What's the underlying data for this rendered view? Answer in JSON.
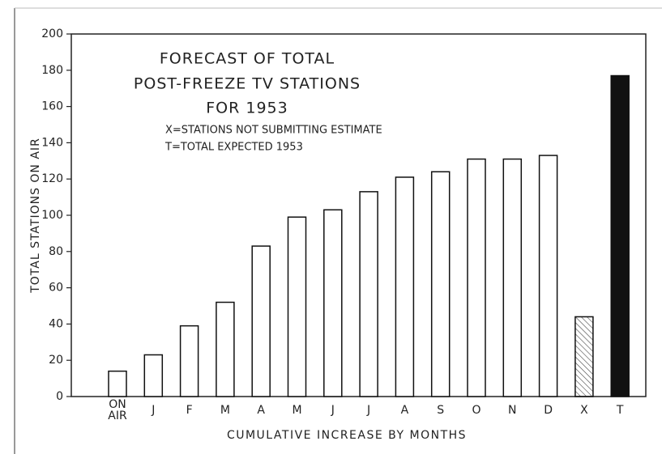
{
  "chart_data": {
    "type": "bar",
    "title": [
      "FORECAST OF TOTAL",
      "POST-FREEZE TV STATIONS",
      "FOR 1953"
    ],
    "annotations": [
      "X=STATIONS NOT SUBMITTING ESTIMATE",
      "T=TOTAL EXPECTED 1953"
    ],
    "ylabel": "TOTAL STATIONS ON AIR",
    "xlabel": "CUMULATIVE INCREASE BY MONTHS",
    "categories": [
      "ON AIR",
      "J",
      "F",
      "M",
      "A",
      "M",
      "J",
      "J",
      "A",
      "S",
      "O",
      "N",
      "D",
      "X",
      "T"
    ],
    "values": [
      14,
      23,
      39,
      52,
      83,
      99,
      103,
      113,
      121,
      124,
      131,
      131,
      133,
      44,
      177
    ],
    "bar_styles": [
      "outline",
      "outline",
      "outline",
      "outline",
      "outline",
      "outline",
      "outline",
      "outline",
      "outline",
      "outline",
      "outline",
      "outline",
      "outline",
      "hatched",
      "solid"
    ],
    "color": "#111111",
    "ylim": [
      0,
      200
    ],
    "yticks": [
      0,
      20,
      40,
      60,
      80,
      100,
      120,
      140,
      160,
      180,
      200
    ]
  }
}
